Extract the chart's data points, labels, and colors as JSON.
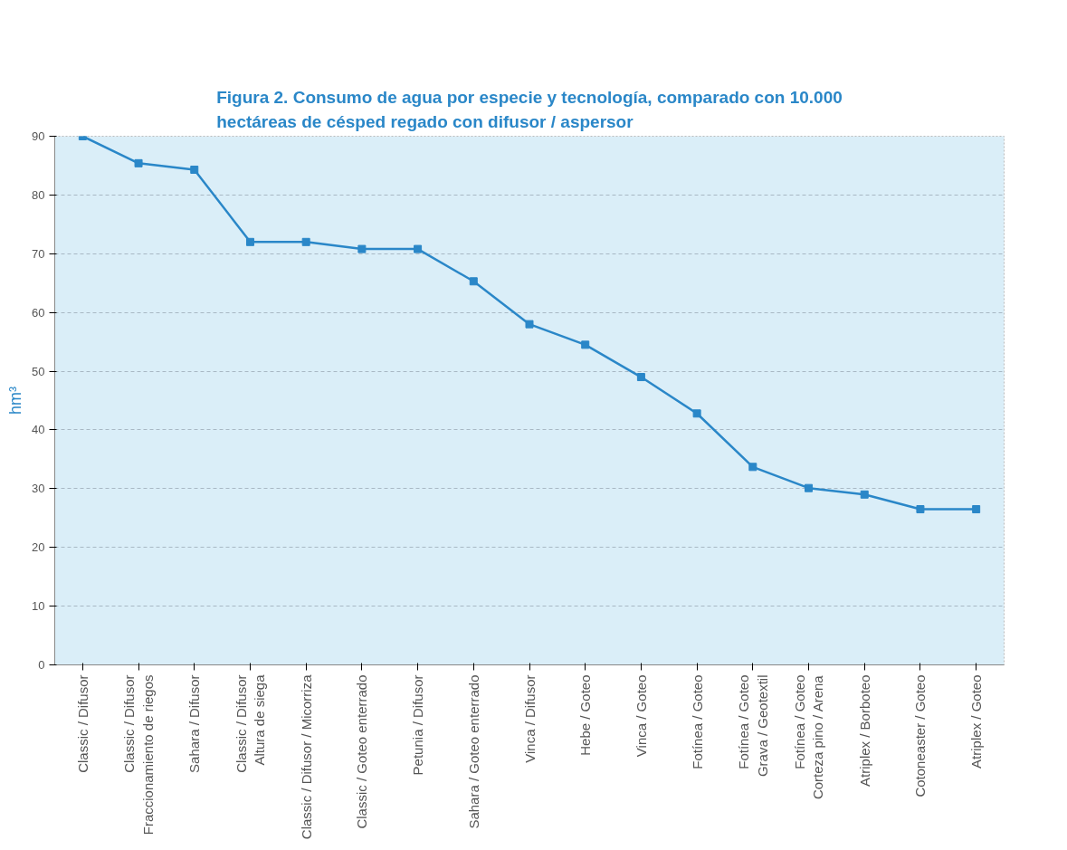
{
  "chart_data": {
    "type": "line",
    "title": "Figura 2. Consumo de agua por especie y tecnología, comparado con 10.000 hectáreas de césped regado con difusor / aspersor",
    "ylabel": "hm³",
    "categories": [
      "Classic / Difusor",
      "Classic / Difusor\nFraccionamiento de riegos",
      "Sahara / Difusor",
      "Classic / Difusor\nAltura de siega",
      "Classic / Difusor / Micorriza",
      "Classic / Goteo enterrado",
      "Petunia / Difusor",
      "Sahara / Goteo enterrado",
      "Vinca / Difusor",
      "Hebe / Goteo",
      "Vinca / Goteo",
      "Fotínea / Goteo",
      "Fotínea / Goteo\nGrava / Geotextil",
      "Fotínea / Goteo\nCorteza pino / Arena",
      "Atriplex / Borboteo",
      "Cotoneaster / Goteo",
      "Atriplex / Goteo"
    ],
    "series": [
      {
        "color": "#2a87c8",
        "values": [
          90,
          85.4,
          84.3,
          72,
          72,
          70.8,
          70.8,
          65.3,
          58,
          54.5,
          49,
          42.8,
          33.7,
          30.1,
          29,
          26.5,
          26.5
        ]
      }
    ],
    "ylim": [
      0,
      90
    ],
    "yticks": [
      0,
      10,
      20,
      30,
      40,
      50,
      60,
      70,
      80,
      90
    ],
    "grid": "y",
    "marker": "square",
    "line_style": "solid"
  }
}
